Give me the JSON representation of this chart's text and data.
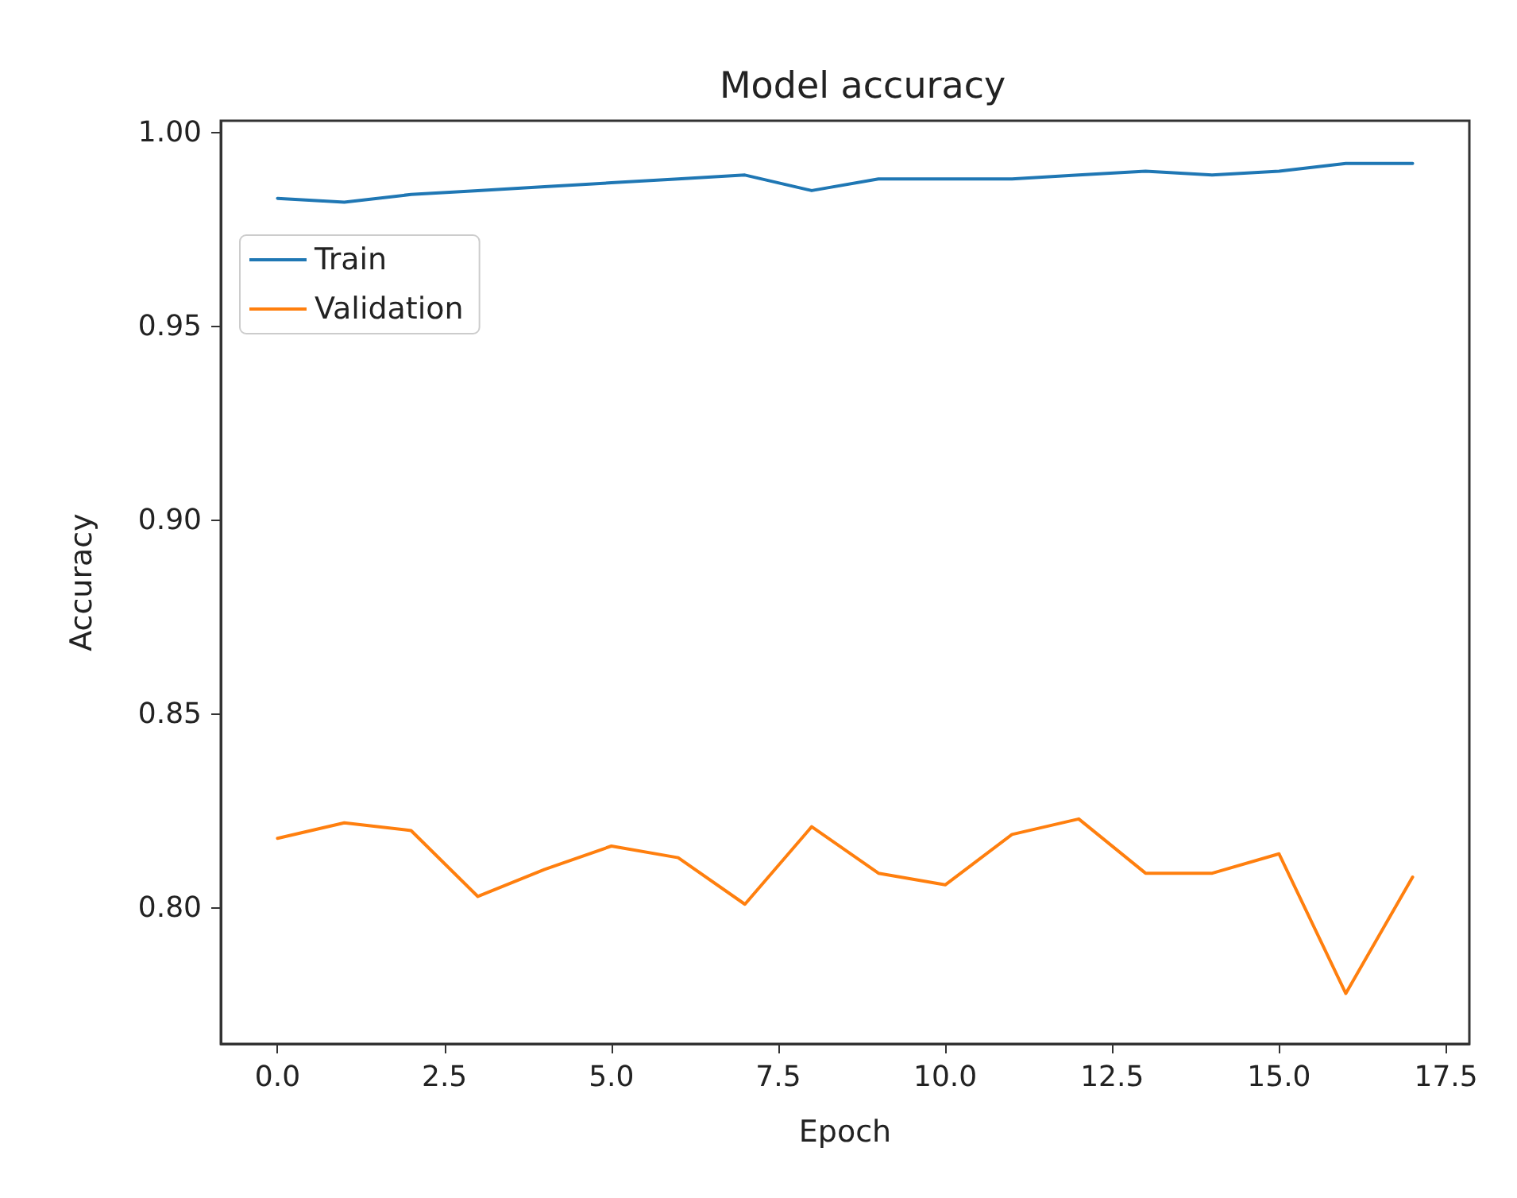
{
  "chart_data": {
    "type": "line",
    "title": "Model accuracy",
    "xlabel": "Epoch",
    "ylabel": "Accuracy",
    "x": [
      0,
      1,
      2,
      3,
      4,
      5,
      6,
      7,
      8,
      9,
      10,
      11,
      12,
      13,
      14,
      15,
      16,
      17
    ],
    "series": [
      {
        "name": "Train",
        "color": "#1f77b4",
        "values": [
          0.983,
          0.982,
          0.984,
          0.985,
          0.986,
          0.987,
          0.988,
          0.989,
          0.985,
          0.988,
          0.988,
          0.988,
          0.989,
          0.99,
          0.989,
          0.99,
          0.992,
          0.992
        ]
      },
      {
        "name": "Validation",
        "color": "#ff7f0e",
        "values": [
          0.818,
          0.822,
          0.82,
          0.803,
          0.81,
          0.816,
          0.813,
          0.801,
          0.821,
          0.809,
          0.806,
          0.819,
          0.823,
          0.809,
          0.809,
          0.814,
          0.778,
          0.808
        ]
      }
    ],
    "xlim": [
      -0.85,
      17.85
    ],
    "ylim": [
      0.765,
      1.003
    ],
    "xticks": [
      {
        "value": 0,
        "label": "0.0"
      },
      {
        "value": 2.5,
        "label": "2.5"
      },
      {
        "value": 5,
        "label": "5.0"
      },
      {
        "value": 7.5,
        "label": "7.5"
      },
      {
        "value": 10,
        "label": "10.0"
      },
      {
        "value": 12.5,
        "label": "12.5"
      },
      {
        "value": 15,
        "label": "15.0"
      },
      {
        "value": 17.5,
        "label": "17.5"
      }
    ],
    "yticks": [
      {
        "value": 0.8,
        "label": "0.80"
      },
      {
        "value": 0.85,
        "label": "0.85"
      },
      {
        "value": 0.9,
        "label": "0.90"
      },
      {
        "value": 0.95,
        "label": "0.95"
      },
      {
        "value": 1,
        "label": "1.00"
      }
    ],
    "grid": false,
    "legend": "top left",
    "marker": "none",
    "line_style": "solid"
  }
}
